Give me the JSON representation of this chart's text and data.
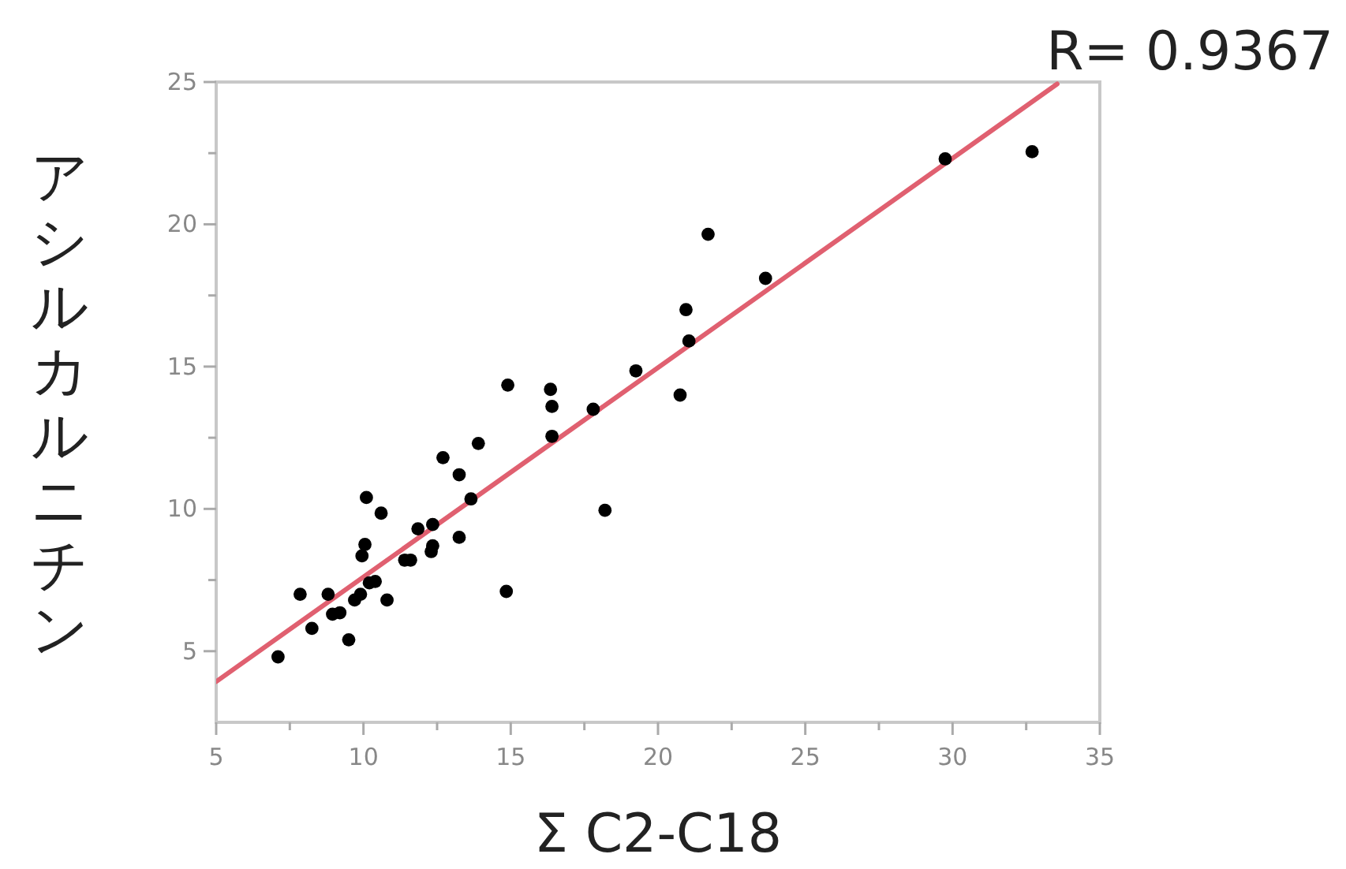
{
  "chart_data": {
    "type": "scatter",
    "xlabel": "Σ C2-C18",
    "ylabel": "アシルカルニチン",
    "annotations": [
      "R= 0.9367"
    ],
    "xlim": [
      5,
      35
    ],
    "ylim": [
      2.5,
      25
    ],
    "xticks": [
      5,
      {
        "value": 7.5,
        "label": null
      },
      10,
      {
        "value": 12.5,
        "label": null
      },
      15,
      {
        "value": 17.5,
        "label": null
      },
      20,
      {
        "value": 22.5,
        "label": null
      },
      25,
      {
        "value": 27.5,
        "label": null
      },
      30,
      {
        "value": 32.5,
        "label": null
      },
      35
    ],
    "yticks": [
      5,
      {
        "value": 7.5,
        "label": null
      },
      10,
      {
        "value": 12.5,
        "label": null
      },
      15,
      {
        "value": 17.5,
        "label": null
      },
      20,
      {
        "value": 22.5,
        "label": null
      },
      25
    ],
    "grid": false,
    "series": [
      {
        "marker": "circle",
        "color": "#000000",
        "x": [
          7.1,
          7.85,
          8.25,
          8.8,
          8.95,
          9.2,
          9.5,
          9.7,
          9.9,
          10.05,
          9.95,
          10.1,
          10.2,
          10.4,
          10.6,
          10.8,
          11.4,
          11.6,
          11.85,
          12.35,
          12.3,
          12.35,
          12.7,
          13.25,
          13.25,
          13.65,
          13.9,
          14.9,
          14.85,
          16.35,
          16.4,
          16.4,
          17.8,
          18.2,
          19.25,
          20.75,
          20.95,
          21.05,
          21.7,
          23.65,
          29.75,
          32.7
        ],
        "values": [
          4.8,
          7.0,
          5.8,
          7.0,
          6.3,
          6.35,
          5.4,
          6.8,
          7.0,
          8.75,
          8.35,
          10.4,
          7.4,
          7.45,
          9.85,
          6.8,
          8.2,
          8.2,
          9.3,
          9.45,
          8.5,
          8.7,
          11.8,
          11.2,
          9.0,
          10.35,
          12.3,
          14.35,
          7.1,
          14.2,
          13.6,
          12.55,
          13.5,
          9.95,
          14.85,
          14.0,
          17.0,
          15.9,
          19.65,
          18.1,
          22.3,
          22.55
        ]
      },
      {
        "type": "line",
        "color": "#e06070",
        "x": [
          5,
          33.55
        ],
        "values": [
          3.93,
          24.93
        ]
      }
    ]
  }
}
